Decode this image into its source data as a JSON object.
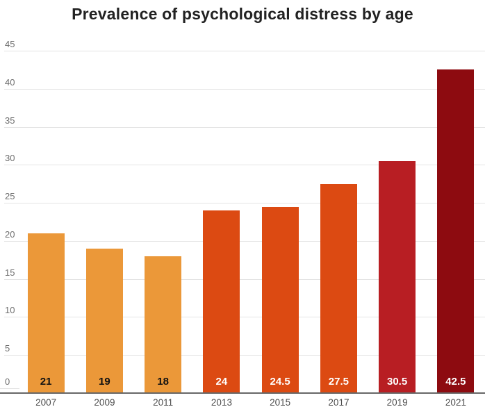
{
  "page": {
    "background_color": "#ffffff"
  },
  "chart_data": {
    "type": "bar",
    "title": "Prevalence of psychological distress by age",
    "categories": [
      "2007",
      "2009",
      "2011",
      "2013",
      "2015",
      "2017",
      "2019",
      "2021"
    ],
    "values": [
      21,
      19,
      18,
      24,
      24.5,
      27.5,
      30.5,
      42.5
    ],
    "bar_labels": [
      "21",
      "19",
      "18",
      "24",
      "24.5",
      "27.5",
      "30.5",
      "42.5"
    ],
    "bar_colors": [
      "#EB9839",
      "#EB9839",
      "#EB9839",
      "#DC4A12",
      "#DC4A12",
      "#DC4A12",
      "#B81E23",
      "#8D0B10"
    ],
    "bar_label_colors": [
      "#111111",
      "#111111",
      "#111111",
      "#ffffff",
      "#ffffff",
      "#ffffff",
      "#ffffff",
      "#ffffff"
    ],
    "xlabel": "",
    "ylabel": "",
    "ylim": [
      0,
      45
    ],
    "yticks": [
      0,
      5,
      10,
      15,
      20,
      25,
      30,
      35,
      40,
      45
    ],
    "grid": "horizontal",
    "legend": "none",
    "colors": {
      "title": "#222222",
      "grid": "#e3e3e3",
      "axis": "#666666",
      "y_tick_label": "#6e6e6e",
      "x_tick_label": "#4d4d4d"
    }
  }
}
